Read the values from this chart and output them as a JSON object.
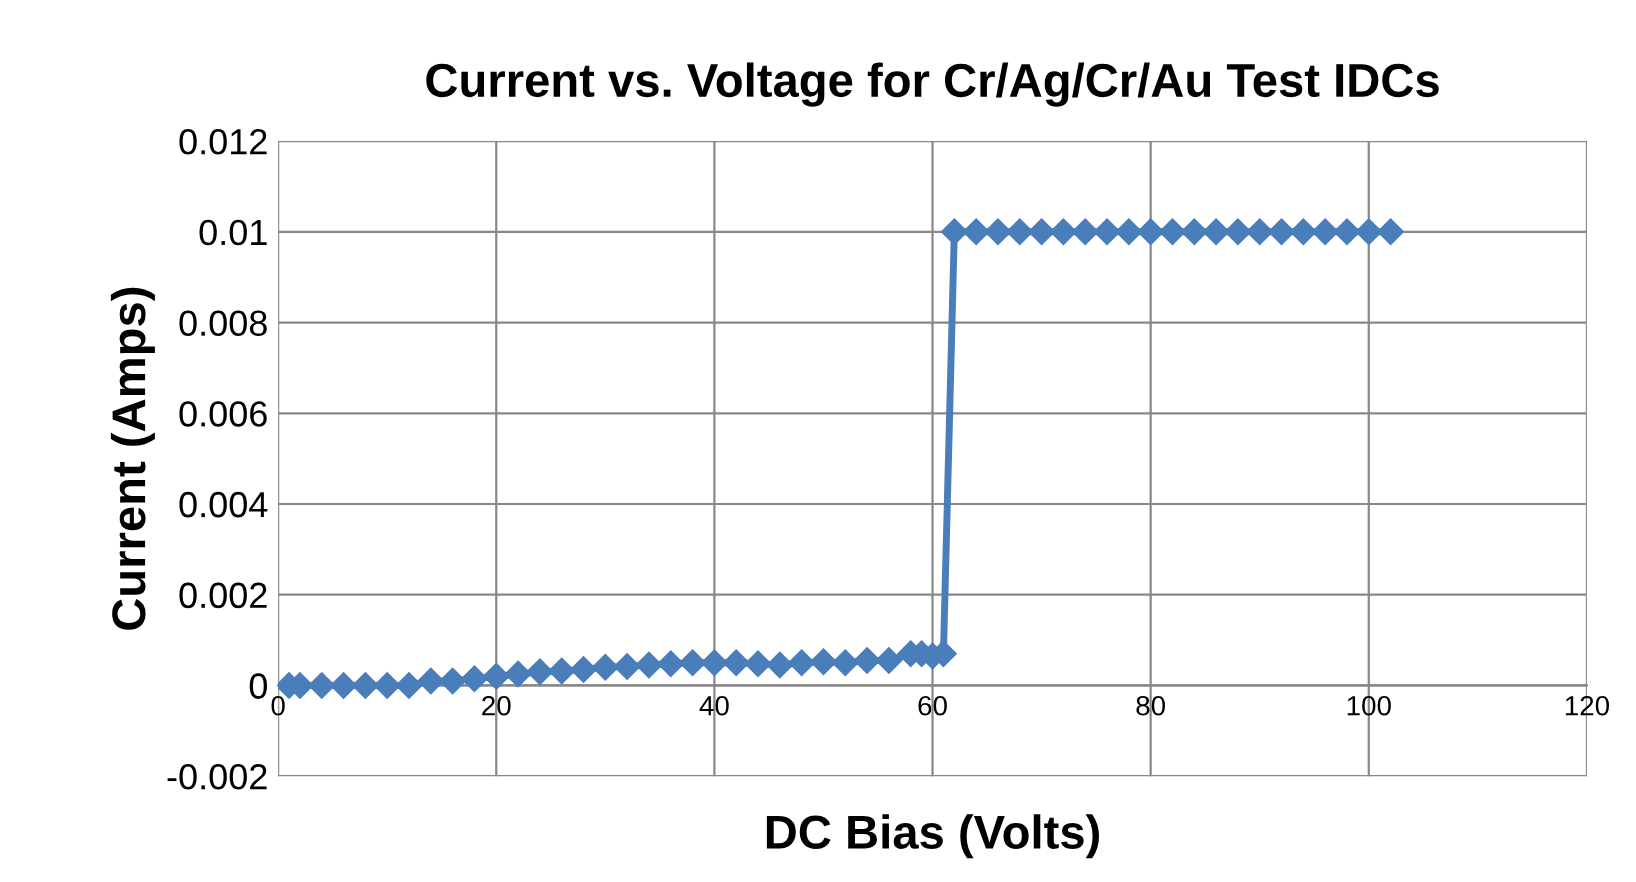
{
  "chart_data": {
    "type": "line",
    "title": "Current vs. Voltage for Cr/Ag/Cr/Au Test IDCs",
    "xlabel": "DC Bias (Volts)",
    "ylabel": "Current (Amps)",
    "series": [
      {
        "color": "#4a7ebb",
        "x": [
          1,
          2,
          4,
          6,
          8,
          10,
          12,
          14,
          16,
          18,
          20,
          22,
          24,
          26,
          28,
          30,
          32,
          34,
          36,
          38,
          40,
          42,
          44,
          46,
          48,
          50,
          52,
          54,
          56,
          58,
          59,
          60,
          61,
          62,
          64,
          66,
          68,
          70,
          72,
          74,
          76,
          78,
          80,
          82,
          84,
          86,
          88,
          90,
          92,
          94,
          96,
          98,
          100,
          102
        ],
        "values": [
          0,
          0,
          0,
          0,
          0,
          0,
          0,
          0.0001,
          0.0001,
          0.00015,
          0.0002,
          0.00025,
          0.0003,
          0.00032,
          0.00035,
          0.0004,
          0.00042,
          0.00045,
          0.00048,
          0.0005,
          0.0005,
          0.0005,
          0.00048,
          0.00045,
          0.0005,
          0.00052,
          0.0005,
          0.00055,
          0.00055,
          0.0007,
          0.0007,
          0.00065,
          0.0007,
          0.01,
          0.01,
          0.01,
          0.01,
          0.01,
          0.01,
          0.01,
          0.01,
          0.01,
          0.01,
          0.01,
          0.01,
          0.01,
          0.01,
          0.01,
          0.01,
          0.01,
          0.01,
          0.01,
          0.01,
          0.01
        ]
      }
    ],
    "xlim": [
      0,
      120
    ],
    "xticks": [
      0,
      20,
      40,
      60,
      80,
      100,
      120
    ],
    "ylim": [
      -0.002,
      0.012
    ],
    "yticks": [
      -0.002,
      0,
      0.002,
      0.004,
      0.006,
      0.008,
      0.01,
      0.012
    ],
    "grid": true,
    "marker": "diamond",
    "line_style": "solid",
    "legend": false
  }
}
